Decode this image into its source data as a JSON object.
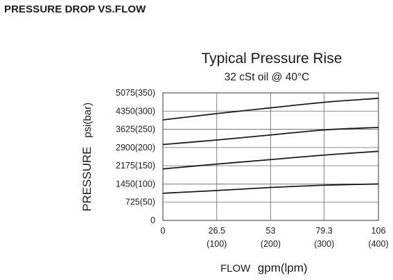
{
  "heading": "PRESSURE DROP VS.FLOW",
  "chart_data": {
    "type": "line",
    "title": "Typical Pressure Rise",
    "subtitle": "32 cSt oil @ 40°C",
    "xlabel": {
      "word": "FLOW",
      "unit": "gpm(lpm)"
    },
    "ylabel": {
      "word": "PRESSURE",
      "unit": "psi(bar)"
    },
    "x_ticks": [
      {
        "value": 0,
        "label": "0",
        "sublabel": ""
      },
      {
        "value": 26.5,
        "label": "26.5",
        "sublabel": "(100)"
      },
      {
        "value": 53,
        "label": "53",
        "sublabel": "(200)"
      },
      {
        "value": 79.3,
        "label": "79.3",
        "sublabel": "(300)"
      },
      {
        "value": 106,
        "label": "106",
        "sublabel": "(400)"
      }
    ],
    "y_ticks": [
      {
        "value": 0,
        "label": "0"
      },
      {
        "value": 725,
        "label": "725(50)"
      },
      {
        "value": 1450,
        "label": "1450(100)"
      },
      {
        "value": 2175,
        "label": "2175(150)"
      },
      {
        "value": 2900,
        "label": "2900(200)"
      },
      {
        "value": 3625,
        "label": "3625(250)"
      },
      {
        "value": 4350,
        "label": "4350(300)"
      },
      {
        "value": 5075,
        "label": "5075(350)"
      }
    ],
    "xlim": [
      0,
      106
    ],
    "ylim": [
      0,
      5075
    ],
    "grid": true,
    "line_color": "#1a1a1a",
    "series": [
      {
        "x": [
          0,
          26.5,
          53,
          79.3,
          106
        ],
        "y": [
          1080,
          1190,
          1310,
          1400,
          1450
        ]
      },
      {
        "x": [
          0,
          26.5,
          53,
          79.3,
          106
        ],
        "y": [
          2050,
          2240,
          2420,
          2600,
          2750
        ]
      },
      {
        "x": [
          0,
          26.5,
          53,
          79.3,
          106
        ],
        "y": [
          3020,
          3200,
          3400,
          3600,
          3700
        ]
      },
      {
        "x": [
          0,
          26.5,
          53,
          79.3,
          106
        ],
        "y": [
          4000,
          4250,
          4480,
          4700,
          4860
        ]
      }
    ]
  }
}
